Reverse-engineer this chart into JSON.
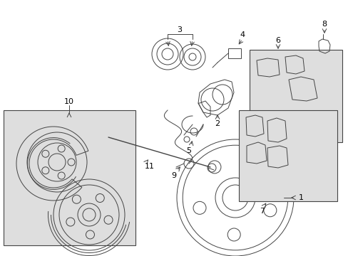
{
  "bg_color": "#ffffff",
  "lc": "#444444",
  "box_fill": "#dedede",
  "lw": 0.7,
  "figsize": [
    4.89,
    3.6
  ],
  "dpi": 100
}
